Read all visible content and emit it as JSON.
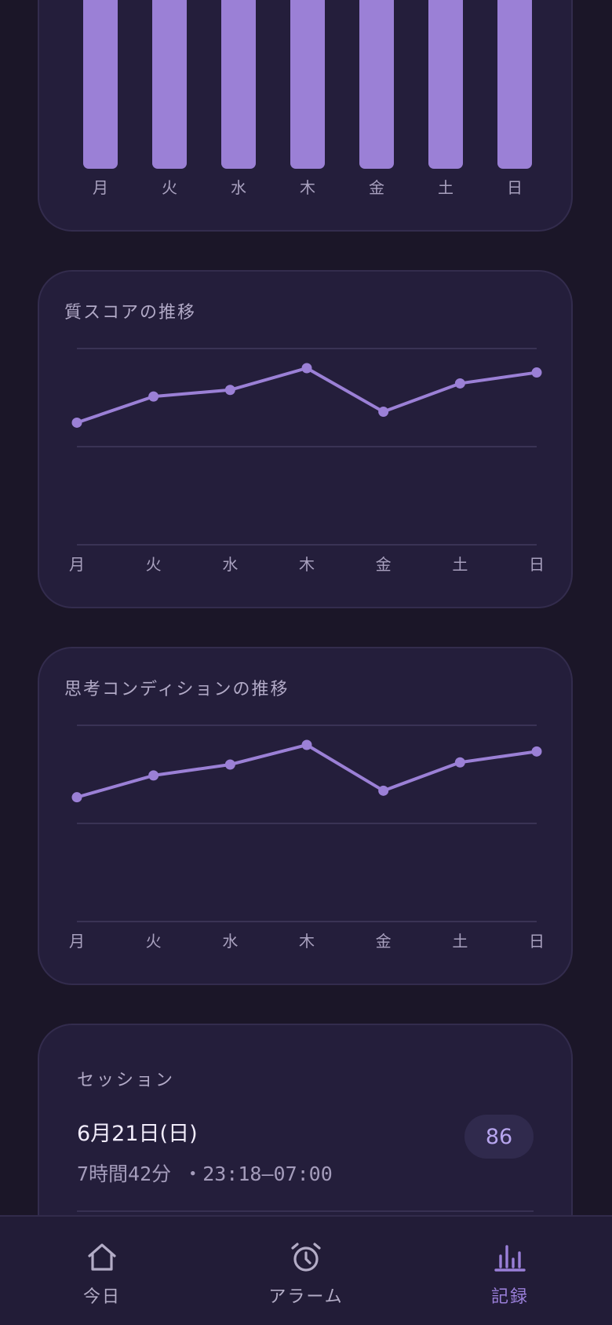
{
  "days": [
    "月",
    "火",
    "水",
    "木",
    "金",
    "土",
    "日"
  ],
  "colors": {
    "accent": "#9b80d6",
    "background": "#1b1628",
    "card": "#241e3b",
    "grid": "#3a3355",
    "axis_text": "#a9a1bf",
    "nav_inactive": "#b3acc6",
    "nav_active": "#9a7fd9"
  },
  "chart_data": [
    {
      "type": "bar",
      "title": "",
      "categories": [
        "月",
        "火",
        "水",
        "木",
        "金",
        "土",
        "日"
      ],
      "values": [
        0.89,
        1.0,
        1.0,
        1.0,
        0.98,
        1.0,
        1.0
      ],
      "note_visible": "bars cropped at top of screen; values relative to visible top"
    },
    {
      "type": "line",
      "title": "質スコアの推移",
      "categories": [
        "月",
        "火",
        "水",
        "木",
        "金",
        "土",
        "日"
      ],
      "values": [
        68,
        74,
        75.5,
        80.5,
        70.5,
        77,
        79.5
      ],
      "ylim": [
        40,
        85
      ],
      "grid": true
    },
    {
      "type": "line",
      "title": "思考コンディションの推移",
      "categories": [
        "月",
        "火",
        "水",
        "木",
        "金",
        "土",
        "日"
      ],
      "values": [
        68.5,
        73.5,
        76,
        80.5,
        70,
        76.5,
        79
      ],
      "ylim": [
        40,
        85
      ],
      "grid": true
    }
  ],
  "session": {
    "title": "セッション",
    "date": "6月21日(日)",
    "detail": "7時間42分 ・23:18–07:00",
    "score": "86"
  },
  "nav": {
    "items": [
      {
        "label": "今日",
        "icon": "home-icon",
        "active": false
      },
      {
        "label": "アラーム",
        "icon": "alarm-clock-icon",
        "active": false
      },
      {
        "label": "記録",
        "icon": "bar-chart-icon",
        "active": true
      }
    ]
  }
}
